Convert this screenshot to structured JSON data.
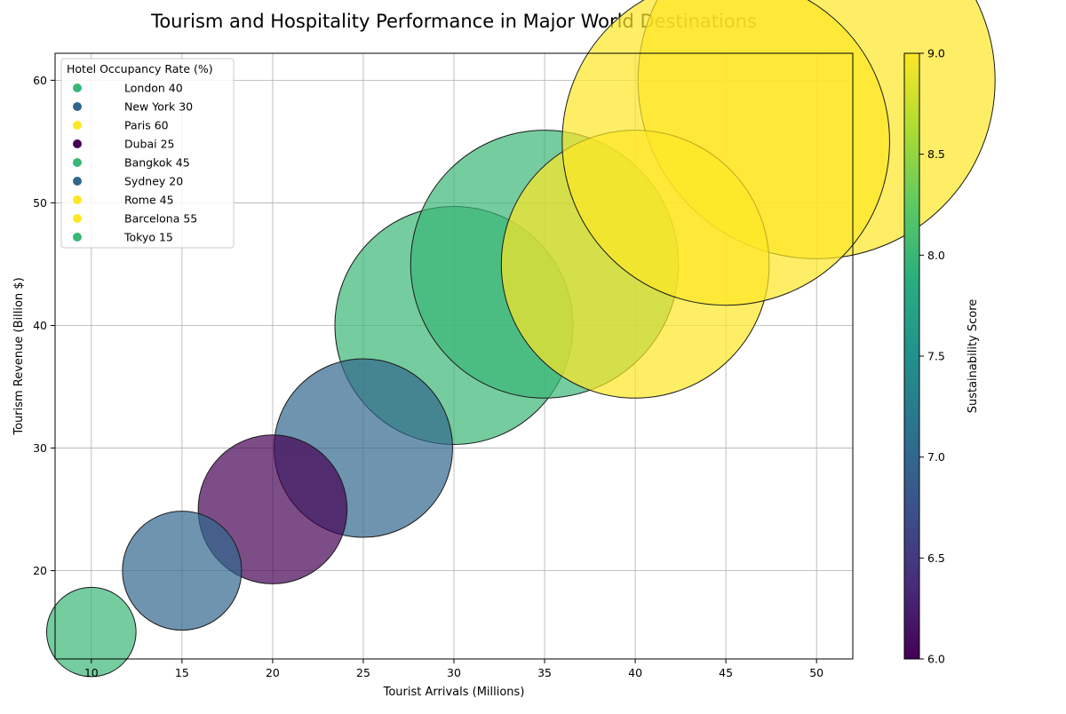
{
  "chart_data": {
    "type": "scatter",
    "title": "Tourism and Hospitality Performance in Major World Destinations",
    "xlabel": "Tourist Arrivals (Millions)",
    "ylabel": "Tourism Revenue (Billion $)",
    "xlim": [
      8,
      52
    ],
    "ylim": [
      12.8,
      62.2
    ],
    "xticks": [
      10,
      15,
      20,
      25,
      30,
      35,
      40,
      45,
      50
    ],
    "yticks": [
      20,
      30,
      40,
      50,
      60
    ],
    "grid": true,
    "legend": {
      "title": "Hotel Occupancy Rate (%)",
      "placement": "top-left"
    },
    "colorbar": {
      "label": "Sustainability Score",
      "min": 6.0,
      "max": 9.0,
      "ticks": [
        "6.0",
        "6.5",
        "7.0",
        "7.5",
        "8.0",
        "8.5",
        "9.0"
      ],
      "colormap": "viridis"
    },
    "points": [
      {
        "legend_label": "London 40",
        "x": 30,
        "y": 40,
        "occupancy": 40,
        "sustainability": 8.0
      },
      {
        "legend_label": "New York 30",
        "x": 25,
        "y": 30,
        "occupancy": 30,
        "sustainability": 7.0
      },
      {
        "legend_label": "Paris 60",
        "x": 50,
        "y": 60,
        "occupancy": 60,
        "sustainability": 9.0
      },
      {
        "legend_label": "Dubai 25",
        "x": 20,
        "y": 25,
        "occupancy": 25,
        "sustainability": 6.0
      },
      {
        "legend_label": "Bangkok 45",
        "x": 35,
        "y": 45,
        "occupancy": 45,
        "sustainability": 8.0
      },
      {
        "legend_label": "Sydney 20",
        "x": 15,
        "y": 20,
        "occupancy": 20,
        "sustainability": 7.0
      },
      {
        "legend_label": "Rome 45",
        "x": 40,
        "y": 45,
        "occupancy": 45,
        "sustainability": 9.0
      },
      {
        "legend_label": "Barcelona 55",
        "x": 45,
        "y": 55,
        "occupancy": 55,
        "sustainability": 9.0
      },
      {
        "legend_label": "Tokyo 15",
        "x": 10,
        "y": 15,
        "occupancy": 15,
        "sustainability": 8.0
      }
    ]
  }
}
